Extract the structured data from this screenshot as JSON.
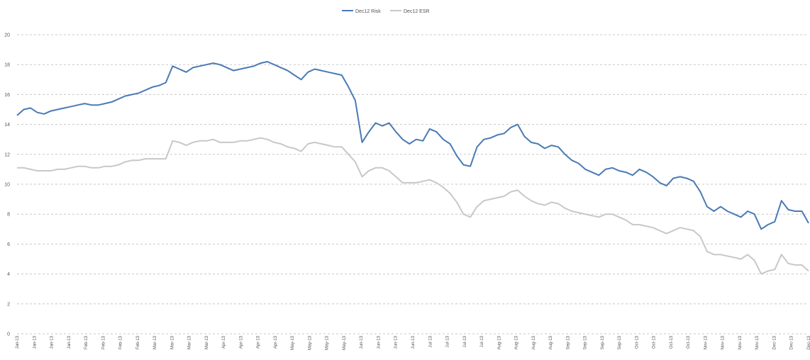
{
  "chart_data": {
    "type": "line",
    "legend_position": "top-center",
    "grid": true,
    "ylim": [
      0,
      20
    ],
    "yticks": [
      "0",
      "2",
      "4",
      "6",
      "8",
      "10",
      "12",
      "14",
      "16",
      "18",
      "20"
    ],
    "xticks": [
      "Jan-13",
      "Jan-13",
      "Jan-13",
      "Jan-13",
      "Feb-13",
      "Feb-13",
      "Feb-13",
      "Feb-13",
      "Mar-13",
      "Mar-13",
      "Mar-13",
      "Mar-13",
      "Apr-13",
      "Apr-13",
      "Apr-13",
      "Apr-13",
      "May-13",
      "May-13",
      "May-13",
      "May-13",
      "Jun-13",
      "Jun-13",
      "Jun-13",
      "Jun-13",
      "Jul-13",
      "Jul-13",
      "Jul-13",
      "Jul-13",
      "Aug-13",
      "Aug-13",
      "Aug-13",
      "Aug-13",
      "Sep-13",
      "Sep-13",
      "Sep-13",
      "Sep-13",
      "Oct-13",
      "Oct-13",
      "Oct-13",
      "Oct-13",
      "Nov-13",
      "Nov-13",
      "Nov-13",
      "Nov-13",
      "Dec-13",
      "Dec-13",
      "Dec-13"
    ],
    "series": [
      {
        "name": "Dec12 Risk",
        "color": "#4a7ab5",
        "values": [
          14.6,
          15.0,
          15.1,
          14.8,
          14.7,
          14.9,
          15.0,
          15.1,
          15.2,
          15.3,
          15.4,
          15.3,
          15.3,
          15.4,
          15.5,
          15.7,
          15.9,
          16.0,
          16.1,
          16.3,
          16.5,
          16.6,
          16.8,
          17.9,
          17.7,
          17.5,
          17.8,
          17.9,
          18.0,
          18.1,
          18.0,
          17.8,
          17.6,
          17.7,
          17.8,
          17.9,
          18.1,
          18.2,
          18.0,
          17.8,
          17.6,
          17.3,
          17.0,
          17.5,
          17.7,
          17.6,
          17.5,
          17.4,
          17.3,
          16.5,
          15.6,
          12.8,
          13.5,
          14.1,
          13.9,
          14.1,
          13.5,
          13.0,
          12.7,
          13.0,
          12.9,
          13.7,
          13.5,
          13.0,
          12.7,
          11.9,
          11.3,
          11.2,
          12.5,
          13.0,
          13.1,
          13.3,
          13.4,
          13.8,
          14.0,
          13.2,
          12.8,
          12.7,
          12.4,
          12.6,
          12.5,
          12.0,
          11.6,
          11.4,
          11.0,
          10.8,
          10.6,
          11.0,
          11.1,
          10.9,
          10.8,
          10.6,
          11.0,
          10.8,
          10.5,
          10.1,
          9.9,
          10.4,
          10.5,
          10.4,
          10.2,
          9.5,
          8.5,
          8.2,
          8.5,
          8.2,
          8.0,
          7.8,
          8.2,
          8.0,
          7.0,
          7.3,
          7.5,
          8.9,
          8.3,
          8.2,
          8.2,
          7.4
        ]
      },
      {
        "name": "Dec12 ESR",
        "color": "#c8c8c8",
        "values": [
          11.1,
          11.1,
          11.0,
          10.9,
          10.9,
          10.9,
          11.0,
          11.0,
          11.1,
          11.2,
          11.2,
          11.1,
          11.1,
          11.2,
          11.2,
          11.3,
          11.5,
          11.6,
          11.6,
          11.7,
          11.7,
          11.7,
          11.7,
          12.9,
          12.8,
          12.6,
          12.8,
          12.9,
          12.9,
          13.0,
          12.8,
          12.8,
          12.8,
          12.9,
          12.9,
          13.0,
          13.1,
          13.0,
          12.8,
          12.7,
          12.5,
          12.4,
          12.2,
          12.7,
          12.8,
          12.7,
          12.6,
          12.5,
          12.5,
          12.0,
          11.5,
          10.5,
          10.9,
          11.1,
          11.1,
          10.9,
          10.5,
          10.1,
          10.1,
          10.1,
          10.2,
          10.3,
          10.1,
          9.8,
          9.4,
          8.8,
          8.0,
          7.8,
          8.5,
          8.9,
          9.0,
          9.1,
          9.2,
          9.5,
          9.6,
          9.2,
          8.9,
          8.7,
          8.6,
          8.8,
          8.7,
          8.4,
          8.2,
          8.1,
          8.0,
          7.9,
          7.8,
          8.0,
          8.0,
          7.8,
          7.6,
          7.3,
          7.3,
          7.2,
          7.1,
          6.9,
          6.7,
          6.9,
          7.1,
          7.0,
          6.9,
          6.5,
          5.5,
          5.3,
          5.3,
          5.2,
          5.1,
          5.0,
          5.3,
          4.9,
          4.0,
          4.2,
          4.3,
          5.3,
          4.7,
          4.6,
          4.6,
          4.2
        ]
      }
    ]
  }
}
